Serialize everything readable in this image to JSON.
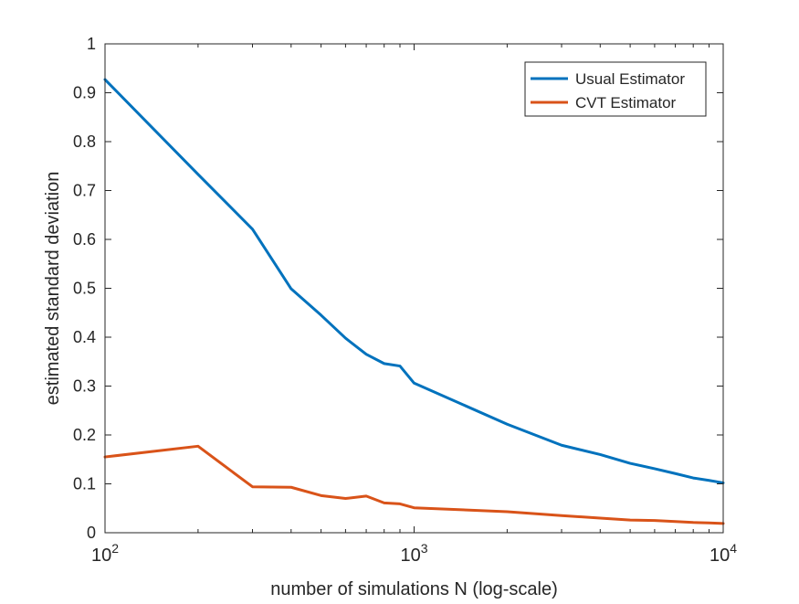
{
  "chart_data": {
    "type": "line",
    "title": "",
    "xlabel": "number of simulations N (log-scale)",
    "ylabel": "estimated standard deviation",
    "xscale": "log",
    "xlim": [
      100,
      10000
    ],
    "ylim": [
      0,
      1
    ],
    "grid": false,
    "legend_position": "top-right",
    "x_ticks": [
      {
        "value": 100,
        "base": "10",
        "exp": "2"
      },
      {
        "value": 1000,
        "base": "10",
        "exp": "3"
      },
      {
        "value": 10000,
        "base": "10",
        "exp": "4"
      }
    ],
    "y_ticks": [
      {
        "value": 0,
        "label": "0"
      },
      {
        "value": 0.1,
        "label": "0.1"
      },
      {
        "value": 0.2,
        "label": "0.2"
      },
      {
        "value": 0.3,
        "label": "0.3"
      },
      {
        "value": 0.4,
        "label": "0.4"
      },
      {
        "value": 0.5,
        "label": "0.5"
      },
      {
        "value": 0.6,
        "label": "0.6"
      },
      {
        "value": 0.7,
        "label": "0.7"
      },
      {
        "value": 0.8,
        "label": "0.8"
      },
      {
        "value": 0.9,
        "label": "0.9"
      },
      {
        "value": 1,
        "label": "1"
      }
    ],
    "x": [
      100,
      200,
      300,
      400,
      500,
      600,
      700,
      800,
      900,
      1000,
      2000,
      3000,
      4000,
      5000,
      6000,
      7000,
      8000,
      9000,
      10000
    ],
    "series": [
      {
        "name": "Usual Estimator",
        "color": "#0072BD",
        "values": [
          0.927,
          0.733,
          0.621,
          0.499,
          0.445,
          0.398,
          0.365,
          0.346,
          0.341,
          0.306,
          0.222,
          0.179,
          0.16,
          0.142,
          0.131,
          0.121,
          0.112,
          0.107,
          0.102
        ]
      },
      {
        "name": "CVT Estimator",
        "color": "#D95319",
        "values": [
          0.155,
          0.177,
          0.094,
          0.093,
          0.076,
          0.07,
          0.075,
          0.061,
          0.059,
          0.051,
          0.043,
          0.035,
          0.03,
          0.026,
          0.025,
          0.023,
          0.021,
          0.02,
          0.019
        ]
      }
    ]
  }
}
